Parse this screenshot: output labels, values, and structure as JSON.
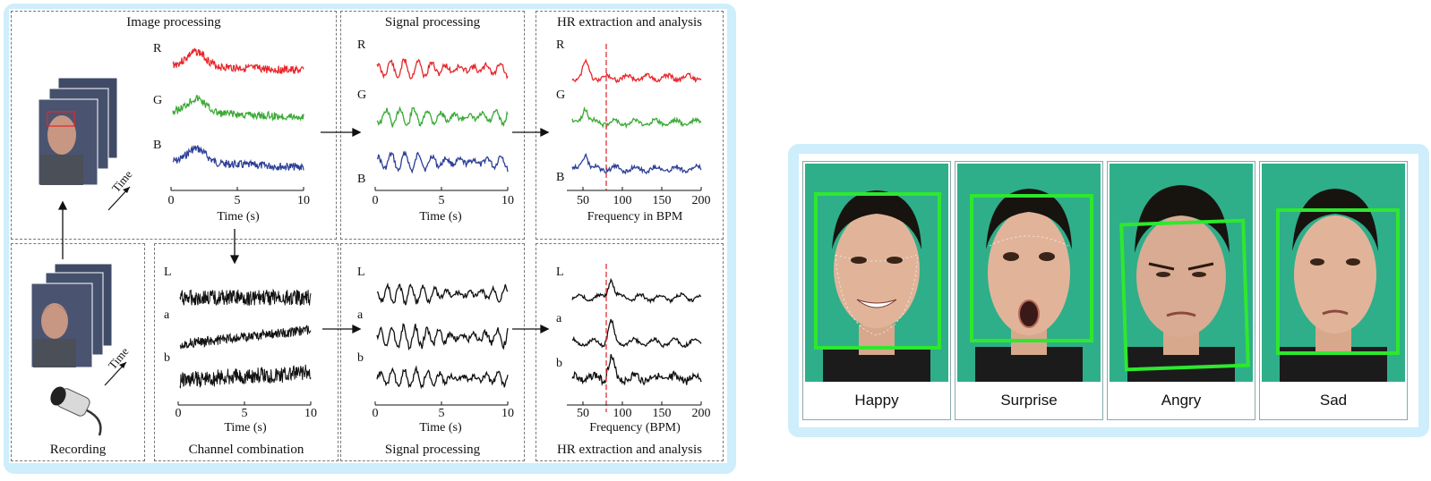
{
  "pipeline": {
    "image_processing": {
      "title": "Image processing",
      "channels": [
        "R",
        "G",
        "B"
      ],
      "xlabel": "Time (s)",
      "ticks": [
        "0",
        "5",
        "10"
      ],
      "time_label": "Time"
    },
    "signal_processing_top": {
      "title": "Signal processing",
      "channels": [
        "R",
        "G",
        "B"
      ],
      "xlabel": "Time (s)",
      "ticks": [
        "0",
        "5",
        "10"
      ]
    },
    "hr_top": {
      "title": "HR extraction and analysis",
      "channels": [
        "R",
        "G",
        "B"
      ],
      "xlabel": "Frequency in BPM",
      "ticks": [
        "50",
        "100",
        "150",
        "200"
      ]
    },
    "recording": {
      "title": "Recording",
      "time_label": "Time"
    },
    "channel_combination": {
      "title": "Channel combination",
      "channels": [
        "L",
        "a",
        "b"
      ],
      "xlabel": "Time (s)",
      "ticks": [
        "0",
        "5",
        "10"
      ]
    },
    "signal_processing_bottom": {
      "title": "Signal processing",
      "channels": [
        "L",
        "a",
        "b"
      ],
      "xlabel": "Time (s)",
      "ticks": [
        "0",
        "5",
        "10"
      ]
    },
    "hr_bottom": {
      "title": "HR extraction and analysis",
      "channels": [
        "L",
        "a",
        "b"
      ],
      "xlabel": "Frequency (BPM)",
      "ticks": [
        "50",
        "100",
        "150",
        "200"
      ]
    },
    "colors": {
      "R": "#e8262b",
      "G": "#3aa935",
      "B": "#2c3f96",
      "black": "#111111",
      "marker": "#e0303a"
    }
  },
  "expressions": {
    "labels": [
      "Happy",
      "Surprise",
      "Angry",
      "Sad"
    ],
    "box_color": "#2ee82e",
    "background_color": "#2fae8a"
  }
}
